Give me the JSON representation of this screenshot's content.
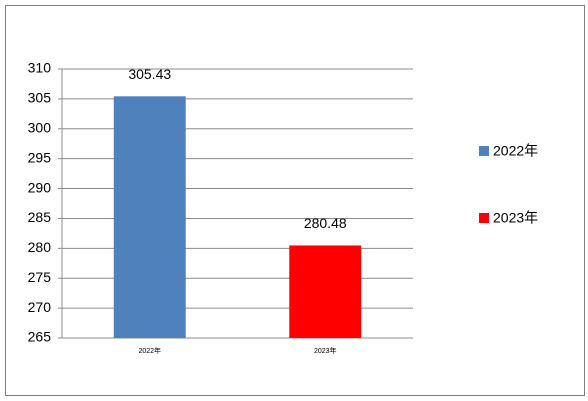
{
  "chart_data": {
    "type": "bar",
    "categories": [
      "2022年",
      "2023年"
    ],
    "series": [
      {
        "name": "2022年",
        "color": "#4f81bd",
        "values": [
          305.43,
          null
        ]
      },
      {
        "name": "2023年",
        "color": "#ff0000",
        "values": [
          null,
          280.48
        ]
      }
    ],
    "ylim": [
      265,
      310
    ],
    "yticks": [
      265,
      270,
      275,
      280,
      285,
      290,
      295,
      300,
      305,
      310
    ],
    "grid": true,
    "legend": "right"
  }
}
